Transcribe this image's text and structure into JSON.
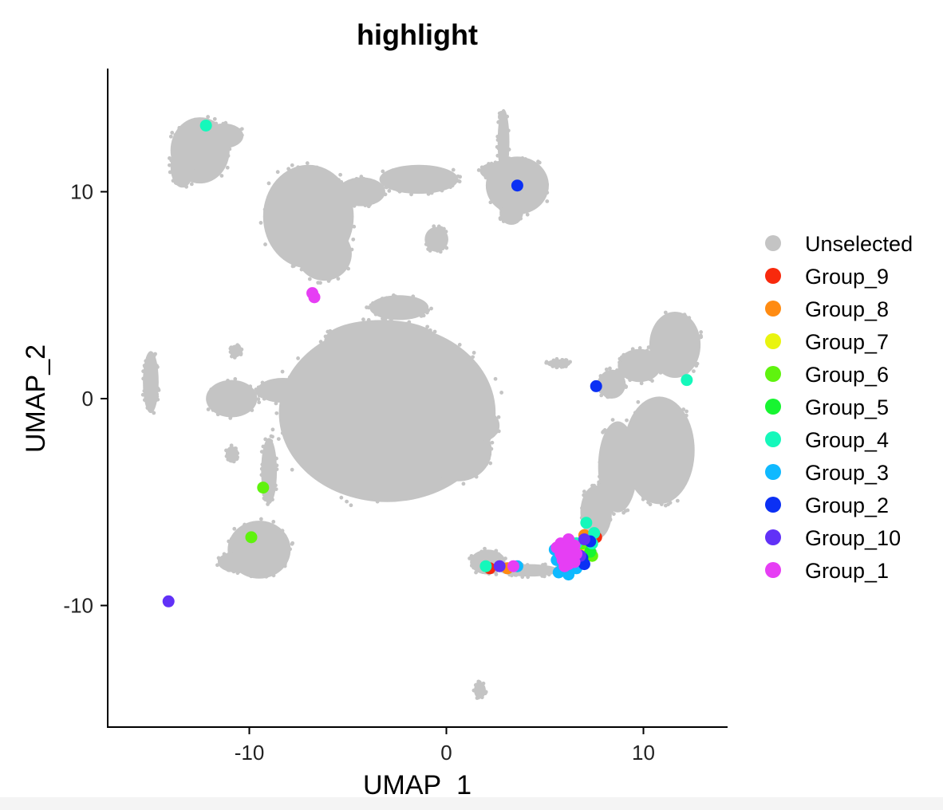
{
  "chart_data": {
    "type": "scatter",
    "title": "highlight",
    "xlabel": "UMAP_1",
    "ylabel": "UMAP_2",
    "xlim": [
      -17,
      14
    ],
    "ylim": [
      -16,
      16
    ],
    "x_ticks": [
      -10,
      0,
      10
    ],
    "y_ticks": [
      -10,
      0,
      10
    ],
    "grid": false,
    "legend_position": "right",
    "background_cluster": {
      "name": "Unselected",
      "color": "#c4c4c4",
      "regions": [
        {
          "cx": -12.5,
          "cy": 12.0,
          "rx": 1.5,
          "ry": 1.6
        },
        {
          "cx": -13.4,
          "cy": 11.2,
          "rx": 0.6,
          "ry": 1.0
        },
        {
          "cx": -11.3,
          "cy": 12.7,
          "rx": 1.0,
          "ry": 0.6
        },
        {
          "cx": -7.0,
          "cy": 8.8,
          "rx": 2.3,
          "ry": 2.5
        },
        {
          "cx": -6.2,
          "cy": 7.0,
          "rx": 1.4,
          "ry": 1.3
        },
        {
          "cx": -4.3,
          "cy": 10.0,
          "rx": 1.2,
          "ry": 0.7
        },
        {
          "cx": -1.4,
          "cy": 10.6,
          "rx": 2.0,
          "ry": 0.7
        },
        {
          "cx": 2.4,
          "cy": 11.0,
          "rx": 0.7,
          "ry": 0.4
        },
        {
          "cx": 2.9,
          "cy": 12.4,
          "rx": 0.3,
          "ry": 1.6
        },
        {
          "cx": 3.6,
          "cy": 10.3,
          "rx": 1.6,
          "ry": 1.4
        },
        {
          "cx": 3.3,
          "cy": 9.0,
          "rx": 0.6,
          "ry": 0.6
        },
        {
          "cx": -0.5,
          "cy": 7.7,
          "rx": 0.6,
          "ry": 0.6
        },
        {
          "cx": -2.4,
          "cy": 4.4,
          "rx": 1.5,
          "ry": 0.6
        },
        {
          "cx": -3.0,
          "cy": -0.7,
          "rx": 5.5,
          "ry": 4.3
        },
        {
          "cx": -3.3,
          "cy": 2.8,
          "rx": 2.9,
          "ry": 1.0
        },
        {
          "cx": 0.6,
          "cy": -2.5,
          "rx": 1.7,
          "ry": 1.5
        },
        {
          "cx": -10.9,
          "cy": 0.0,
          "rx": 1.3,
          "ry": 0.9
        },
        {
          "cx": -8.3,
          "cy": 0.4,
          "rx": 1.3,
          "ry": 0.6
        },
        {
          "cx": -9.0,
          "cy": -3.5,
          "rx": 0.4,
          "ry": 1.6
        },
        {
          "cx": -9.5,
          "cy": -7.3,
          "rx": 1.6,
          "ry": 1.4
        },
        {
          "cx": -10.7,
          "cy": -7.9,
          "rx": 0.9,
          "ry": 0.5
        },
        {
          "cx": -15.0,
          "cy": 0.8,
          "rx": 0.4,
          "ry": 1.5
        },
        {
          "cx": -10.9,
          "cy": -2.7,
          "rx": 0.3,
          "ry": 0.4
        },
        {
          "cx": 1.7,
          "cy": -1.3,
          "rx": 1.0,
          "ry": 0.8
        },
        {
          "cx": 11.6,
          "cy": 2.6,
          "rx": 1.3,
          "ry": 1.6
        },
        {
          "cx": 9.8,
          "cy": 1.6,
          "rx": 1.1,
          "ry": 0.8
        },
        {
          "cx": 8.4,
          "cy": 0.7,
          "rx": 0.7,
          "ry": 0.7
        },
        {
          "cx": 10.8,
          "cy": -2.5,
          "rx": 1.8,
          "ry": 2.6
        },
        {
          "cx": 8.7,
          "cy": -3.3,
          "rx": 1.0,
          "ry": 2.2
        },
        {
          "cx": 7.6,
          "cy": -5.5,
          "rx": 0.8,
          "ry": 1.3
        },
        {
          "cx": 6.6,
          "cy": -7.3,
          "rx": 0.9,
          "ry": 0.6
        },
        {
          "cx": 2.1,
          "cy": -7.9,
          "rx": 0.9,
          "ry": 0.6
        },
        {
          "cx": 4.2,
          "cy": -8.3,
          "rx": 1.5,
          "ry": 0.3
        },
        {
          "cx": 5.7,
          "cy": 1.7,
          "rx": 0.6,
          "ry": 0.2
        },
        {
          "cx": -10.7,
          "cy": 2.3,
          "rx": 0.3,
          "ry": 0.3
        },
        {
          "cx": 1.7,
          "cy": -14.1,
          "rx": 0.3,
          "ry": 0.4
        }
      ]
    },
    "series": [
      {
        "name": "Group_9",
        "color": "#f8290c",
        "points": [
          [
            2.2,
            -8.2
          ],
          [
            7.6,
            -6.7
          ],
          [
            7.2,
            -7.2
          ],
          [
            6.4,
            -7.8
          ]
        ]
      },
      {
        "name": "Group_8",
        "color": "#ff8b12",
        "points": [
          [
            3.1,
            -8.2
          ],
          [
            7.0,
            -6.6
          ],
          [
            6.8,
            -7.4
          ],
          [
            6.0,
            -7.9
          ]
        ]
      },
      {
        "name": "Group_7",
        "color": "#e9f40f",
        "points": [
          [
            7.1,
            -7.1
          ],
          [
            6.5,
            -7.3
          ]
        ]
      },
      {
        "name": "Group_6",
        "color": "#5ff30e",
        "points": [
          [
            -9.3,
            -4.3
          ],
          [
            -9.9,
            -6.7
          ],
          [
            7.4,
            -7.6
          ],
          [
            6.9,
            -7.0
          ]
        ]
      },
      {
        "name": "Group_5",
        "color": "#17f531",
        "points": [
          [
            7.3,
            -7.4
          ],
          [
            6.7,
            -7.8
          ]
        ]
      },
      {
        "name": "Group_4",
        "color": "#15f8bb",
        "points": [
          [
            -12.2,
            13.2
          ],
          [
            12.2,
            0.9
          ],
          [
            2.0,
            -8.1
          ],
          [
            7.1,
            -6.0
          ],
          [
            7.5,
            -6.5
          ],
          [
            7.4,
            -7.0
          ],
          [
            6.6,
            -7.0
          ]
        ]
      },
      {
        "name": "Group_3",
        "color": "#0fb9ff",
        "points": [
          [
            3.6,
            -8.1
          ],
          [
            5.5,
            -7.3
          ],
          [
            5.6,
            -7.8
          ],
          [
            5.9,
            -8.2
          ],
          [
            6.2,
            -8.5
          ],
          [
            6.6,
            -8.2
          ],
          [
            5.7,
            -8.4
          ]
        ]
      },
      {
        "name": "Group_2",
        "color": "#0b30f4",
        "points": [
          [
            3.6,
            10.3
          ],
          [
            7.6,
            0.6
          ],
          [
            7.3,
            -6.9
          ],
          [
            6.9,
            -7.7
          ],
          [
            7.0,
            -8.0
          ],
          [
            6.4,
            -7.1
          ]
        ]
      },
      {
        "name": "Group_10",
        "color": "#6131f7",
        "points": [
          [
            -14.1,
            -9.8
          ],
          [
            2.7,
            -8.1
          ],
          [
            6.8,
            -7.6
          ],
          [
            7.0,
            -6.8
          ]
        ]
      },
      {
        "name": "Group_1",
        "color": "#e63ef4",
        "points": [
          [
            -6.8,
            5.1
          ],
          [
            -6.7,
            4.9
          ],
          [
            3.4,
            -8.1
          ],
          [
            5.6,
            -7.2
          ],
          [
            5.8,
            -7.5
          ],
          [
            5.9,
            -7.8
          ],
          [
            6.0,
            -7.2
          ],
          [
            6.1,
            -7.6
          ],
          [
            6.2,
            -8.0
          ],
          [
            6.3,
            -7.3
          ],
          [
            6.4,
            -7.7
          ],
          [
            6.5,
            -7.9
          ],
          [
            6.6,
            -7.5
          ],
          [
            6.0,
            -8.1
          ],
          [
            5.8,
            -7.0
          ],
          [
            6.2,
            -6.8
          ],
          [
            6.5,
            -7.1
          ]
        ]
      }
    ],
    "legend_entries": [
      "Unselected",
      "Group_9",
      "Group_8",
      "Group_7",
      "Group_6",
      "Group_5",
      "Group_4",
      "Group_3",
      "Group_2",
      "Group_10",
      "Group_1"
    ],
    "legend_colors": [
      "#c4c4c4",
      "#f8290c",
      "#ff8b12",
      "#e9f40f",
      "#5ff30e",
      "#17f531",
      "#15f8bb",
      "#0fb9ff",
      "#0b30f4",
      "#6131f7",
      "#e63ef4"
    ]
  }
}
